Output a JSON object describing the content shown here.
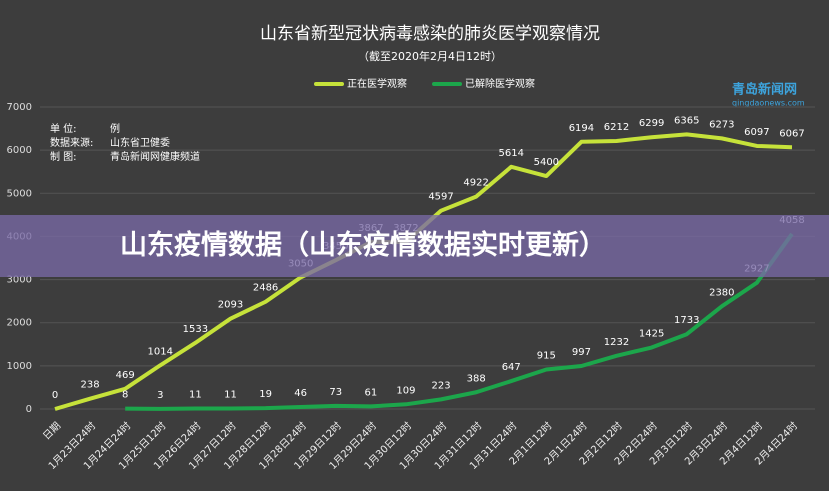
{
  "chart_data": {
    "type": "line",
    "title": "山东省新型冠状病毒感染的肺炎医学观察情况",
    "subtitle": "（截至2020年2月4日12时）",
    "annotations": [
      [
        "单 位:",
        "例"
      ],
      [
        "数据来源:",
        "山东省卫健委"
      ],
      [
        "制 图:",
        "青岛新闻网健康频道"
      ]
    ],
    "categories": [
      "日期",
      "1月23日24时",
      "1月24日24时",
      "1月25日12时",
      "1月26日24时",
      "1月27日12时",
      "1月28日12时",
      "1月28日24时",
      "1月29日12时",
      "1月29日24时",
      "1月30日12时",
      "1月30日24时",
      "1月31日12时",
      "1月31日24时",
      "2月1日12时",
      "2月1日24时",
      "2月2日12时",
      "2月2日24时",
      "2月3日12时",
      "2月3日24时",
      "2月4日12时",
      "2月4日24时"
    ],
    "series": [
      {
        "name": "正在医学观察",
        "color": "#c6e23a",
        "values": [
          0,
          238,
          469,
          1014,
          1533,
          2093,
          2486,
          3050,
          3450,
          3867,
          3872,
          4597,
          4922,
          5614,
          5400,
          6194,
          6212,
          6299,
          6365,
          6273,
          6097,
          6067
        ]
      },
      {
        "name": "已解除医学观察",
        "color": "#1ca64b",
        "values": [
          null,
          null,
          8,
          3,
          11,
          11,
          19,
          46,
          73,
          61,
          109,
          223,
          388,
          647,
          915,
          997,
          1232,
          1425,
          1733,
          2380,
          2927,
          4058
        ]
      }
    ],
    "ylim": [
      0,
      7000
    ],
    "yticks": [
      0,
      1000,
      2000,
      3000,
      4000,
      5000,
      6000,
      7000
    ],
    "grid": true,
    "legend": "top"
  },
  "logo": {
    "name": "青岛新闻网",
    "url": "qingdaonews.com"
  },
  "banner": "山东疫情数据（山东疫情数据实时更新）"
}
